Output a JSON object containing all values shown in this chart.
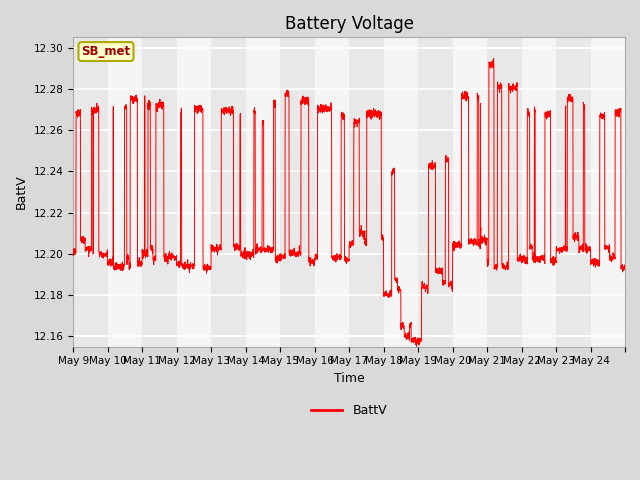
{
  "title": "Battery Voltage",
  "xlabel": "Time",
  "ylabel": "BattV",
  "legend_label": "BattV",
  "legend_box_label": "SB_met",
  "ylim": [
    12.155,
    12.305
  ],
  "yticks": [
    12.16,
    12.18,
    12.2,
    12.22,
    12.24,
    12.26,
    12.28,
    12.3
  ],
  "xticklabels": [
    "May 9",
    "May 10",
    "May 11",
    "May 12",
    "May 13",
    "May 14",
    "May 15",
    "May 16",
    "May 17",
    "May 18",
    "May 19",
    "May 20",
    "May 21",
    "May 22",
    "May 23",
    "May 24"
  ],
  "line_color": "#ff0000",
  "bg_color": "#d9d9d9",
  "plot_bg_color": "#e8e8e8",
  "stripe_color": "#d0d0d0",
  "grid_color": "#ffffff",
  "box_facecolor": "#ffffcc",
  "box_edgecolor": "#aaaa00",
  "title_fontsize": 12,
  "axis_label_fontsize": 9,
  "tick_fontsize": 7.5,
  "n_days": 16
}
